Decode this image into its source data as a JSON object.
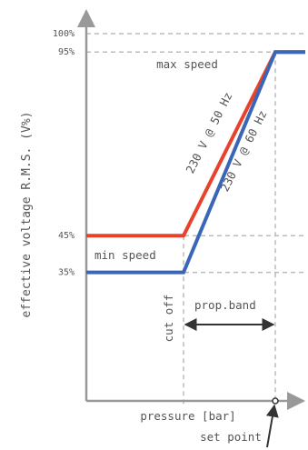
{
  "chart_data": {
    "type": "line",
    "xlabel": "pressure [bar]",
    "ylabel": "effective voltage R.M.S. (V%)",
    "ylim": [
      0,
      100
    ],
    "y_ticks": [
      "100%",
      "95%",
      "45%",
      "35%"
    ],
    "x_marks": {
      "cut_off": "cut off",
      "set_point": "set point"
    },
    "series": [
      {
        "name": "230 V @ 50 Hz",
        "color": "#e8412c",
        "points": [
          {
            "x": 0,
            "y": 45
          },
          {
            "x": 0.51,
            "y": 45
          },
          {
            "x": 1.0,
            "y": 95
          },
          {
            "x": 1.16,
            "y": 95
          }
        ]
      },
      {
        "name": "230 V @ 60 Hz",
        "color": "#3a66b8",
        "points": [
          {
            "x": 0,
            "y": 35
          },
          {
            "x": 0.51,
            "y": 35
          },
          {
            "x": 1.0,
            "y": 95
          },
          {
            "x": 1.16,
            "y": 95
          }
        ]
      }
    ],
    "annotations": {
      "max_speed": "max speed",
      "min_speed": "min speed",
      "prop_band": "prop.band"
    },
    "grid": "dashed",
    "axis_color": "#999999",
    "label_color": "#555555"
  }
}
